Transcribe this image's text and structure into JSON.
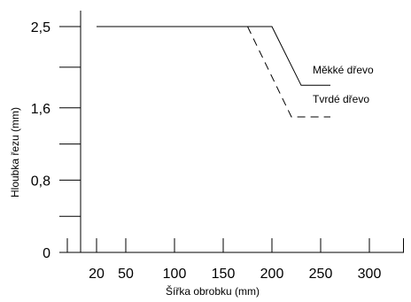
{
  "chart_data": {
    "type": "line",
    "xlabel": "Šířka obrobku (mm)",
    "ylabel": "Hloubka řezu (mm)",
    "x_ticks": [
      20,
      50,
      100,
      150,
      200,
      250,
      300
    ],
    "x_tick_labels": [
      "20",
      "50",
      "100",
      "150",
      "200",
      "250",
      "300"
    ],
    "y_ticks": [
      0,
      0.8,
      1.6,
      2.5
    ],
    "y_tick_labels": [
      "0",
      "0,8",
      "1,6",
      "2,5"
    ],
    "xlim": [
      -10,
      335
    ],
    "ylim": [
      0,
      2.7
    ],
    "grid": false,
    "legend": "labels next to lines",
    "series": [
      {
        "name": "Měkké dřevo",
        "style": "solid",
        "x": [
          20,
          200,
          230,
          260
        ],
        "y": [
          2.5,
          2.5,
          1.85,
          1.85
        ]
      },
      {
        "name": "Tvrdé dřevo",
        "style": "dashed",
        "x": [
          175,
          220,
          260
        ],
        "y": [
          2.5,
          1.5,
          1.5
        ]
      }
    ]
  }
}
